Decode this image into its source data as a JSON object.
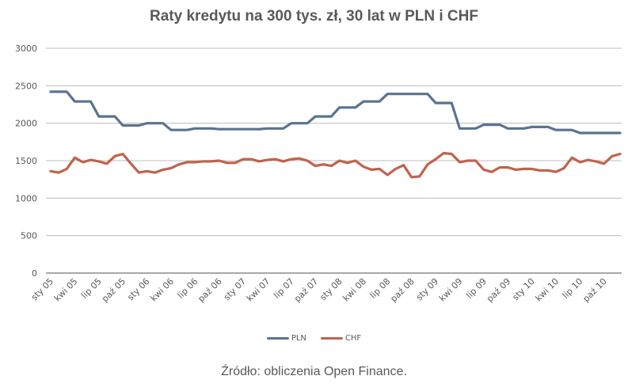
{
  "chart_data": {
    "type": "line",
    "title": "Raty kredytu na 300 tys. zł, 30 lat w PLN i CHF",
    "xlabel": "",
    "ylabel": "",
    "ylim": [
      0,
      3000
    ],
    "yticks": [
      0,
      500,
      1000,
      1500,
      2000,
      2500,
      3000
    ],
    "grid": true,
    "legend_position": "bottom",
    "x_tick_labels": [
      "sty 05",
      "kwi 05",
      "lip 05",
      "paź 05",
      "sty 06",
      "kwi 06",
      "lip 06",
      "paź 06",
      "sty 07",
      "kwi 07",
      "lip 07",
      "paź 07",
      "sty 08",
      "kwi 08",
      "lip 08",
      "paź 08",
      "sty 09",
      "kwi 09",
      "lip 09",
      "paź 09",
      "sty 10",
      "kwi 10",
      "lip 10",
      "paź 10"
    ],
    "x_tick_every": 3,
    "x_count": 72,
    "series": [
      {
        "name": "PLN",
        "color": "#5a7391",
        "values": [
          2420,
          2420,
          2420,
          2290,
          2290,
          2290,
          2090,
          2090,
          2090,
          1970,
          1970,
          1970,
          2000,
          2000,
          2000,
          1910,
          1910,
          1910,
          1930,
          1930,
          1930,
          1920,
          1920,
          1920,
          1920,
          1920,
          1920,
          1930,
          1930,
          1930,
          2000,
          2000,
          2000,
          2090,
          2090,
          2090,
          2210,
          2210,
          2210,
          2290,
          2290,
          2290,
          2390,
          2390,
          2390,
          2390,
          2390,
          2390,
          2270,
          2270,
          2270,
          1930,
          1930,
          1930,
          1980,
          1980,
          1980,
          1930,
          1930,
          1930,
          1950,
          1950,
          1950,
          1910,
          1910,
          1910,
          1870,
          1870,
          1870,
          1870,
          1870,
          1870
        ]
      },
      {
        "name": "CHF",
        "color": "#c0634d",
        "values": [
          1360,
          1340,
          1390,
          1540,
          1480,
          1510,
          1490,
          1460,
          1560,
          1590,
          1460,
          1340,
          1360,
          1340,
          1380,
          1400,
          1450,
          1480,
          1480,
          1490,
          1490,
          1500,
          1470,
          1470,
          1520,
          1520,
          1490,
          1510,
          1520,
          1490,
          1520,
          1530,
          1500,
          1430,
          1450,
          1430,
          1500,
          1470,
          1500,
          1420,
          1380,
          1390,
          1310,
          1390,
          1440,
          1280,
          1290,
          1450,
          1520,
          1600,
          1590,
          1480,
          1500,
          1500,
          1380,
          1350,
          1410,
          1410,
          1380,
          1390,
          1390,
          1370,
          1370,
          1350,
          1400,
          1540,
          1480,
          1510,
          1490,
          1460,
          1560,
          1590
        ]
      }
    ]
  },
  "header": {
    "title": "Raty kredytu na 300 tys. zł, 30 lat w PLN i CHF"
  },
  "legend": {
    "items": [
      {
        "label": "PLN",
        "color": "#5a7391"
      },
      {
        "label": "CHF",
        "color": "#c0634d"
      }
    ]
  },
  "footer": {
    "source": "Źródło: obliczenia Open Finance."
  }
}
